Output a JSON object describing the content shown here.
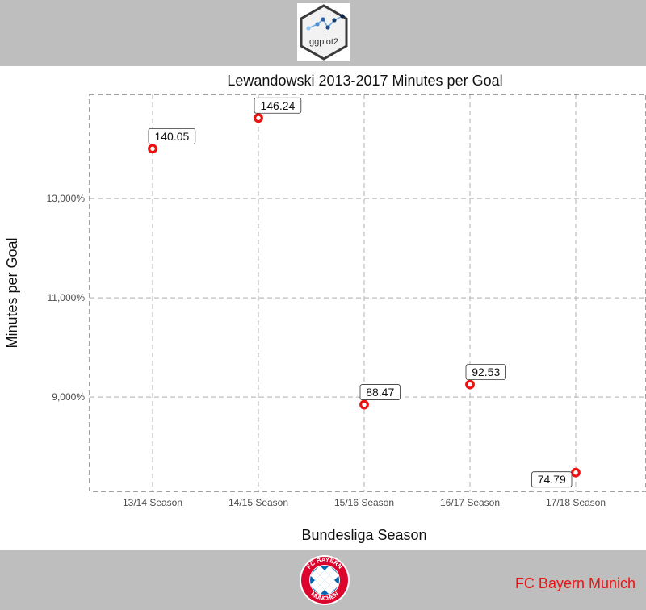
{
  "header": {
    "logo_text": "ggplot2"
  },
  "footer": {
    "club_name": "FC Bayern Munich",
    "badge_text_top": "FC BAYERN",
    "badge_text_bottom": "MÜNCHEN"
  },
  "colors": {
    "band": "#bebebe",
    "point": "#ee1111",
    "footer_text": "#ee1111",
    "badge_red": "#dc052d",
    "badge_blue": "#0066b2"
  },
  "chart_data": {
    "type": "scatter",
    "title": "Lewandowski 2013-2017 Minutes per Goal",
    "xlabel": "Bundesliga Season",
    "ylabel": "Minutes per Goal",
    "categories": [
      "13/14 Season",
      "14/15 Season",
      "15/16 Season",
      "16/17 Season",
      "17/18 Season"
    ],
    "values": [
      140.05,
      146.24,
      88.47,
      92.53,
      74.79
    ],
    "labels": [
      "140.05",
      "146.24",
      "88.47",
      "92.53",
      "74.79"
    ],
    "y_plotted": [
      14005,
      14624,
      8847,
      9253,
      7479
    ],
    "y_ticks": [
      9000,
      11000,
      13000
    ],
    "y_tick_labels": [
      "9,000%",
      "11,000%",
      "13,000%"
    ],
    "ylim": [
      7100,
      15100
    ],
    "grid": true
  }
}
